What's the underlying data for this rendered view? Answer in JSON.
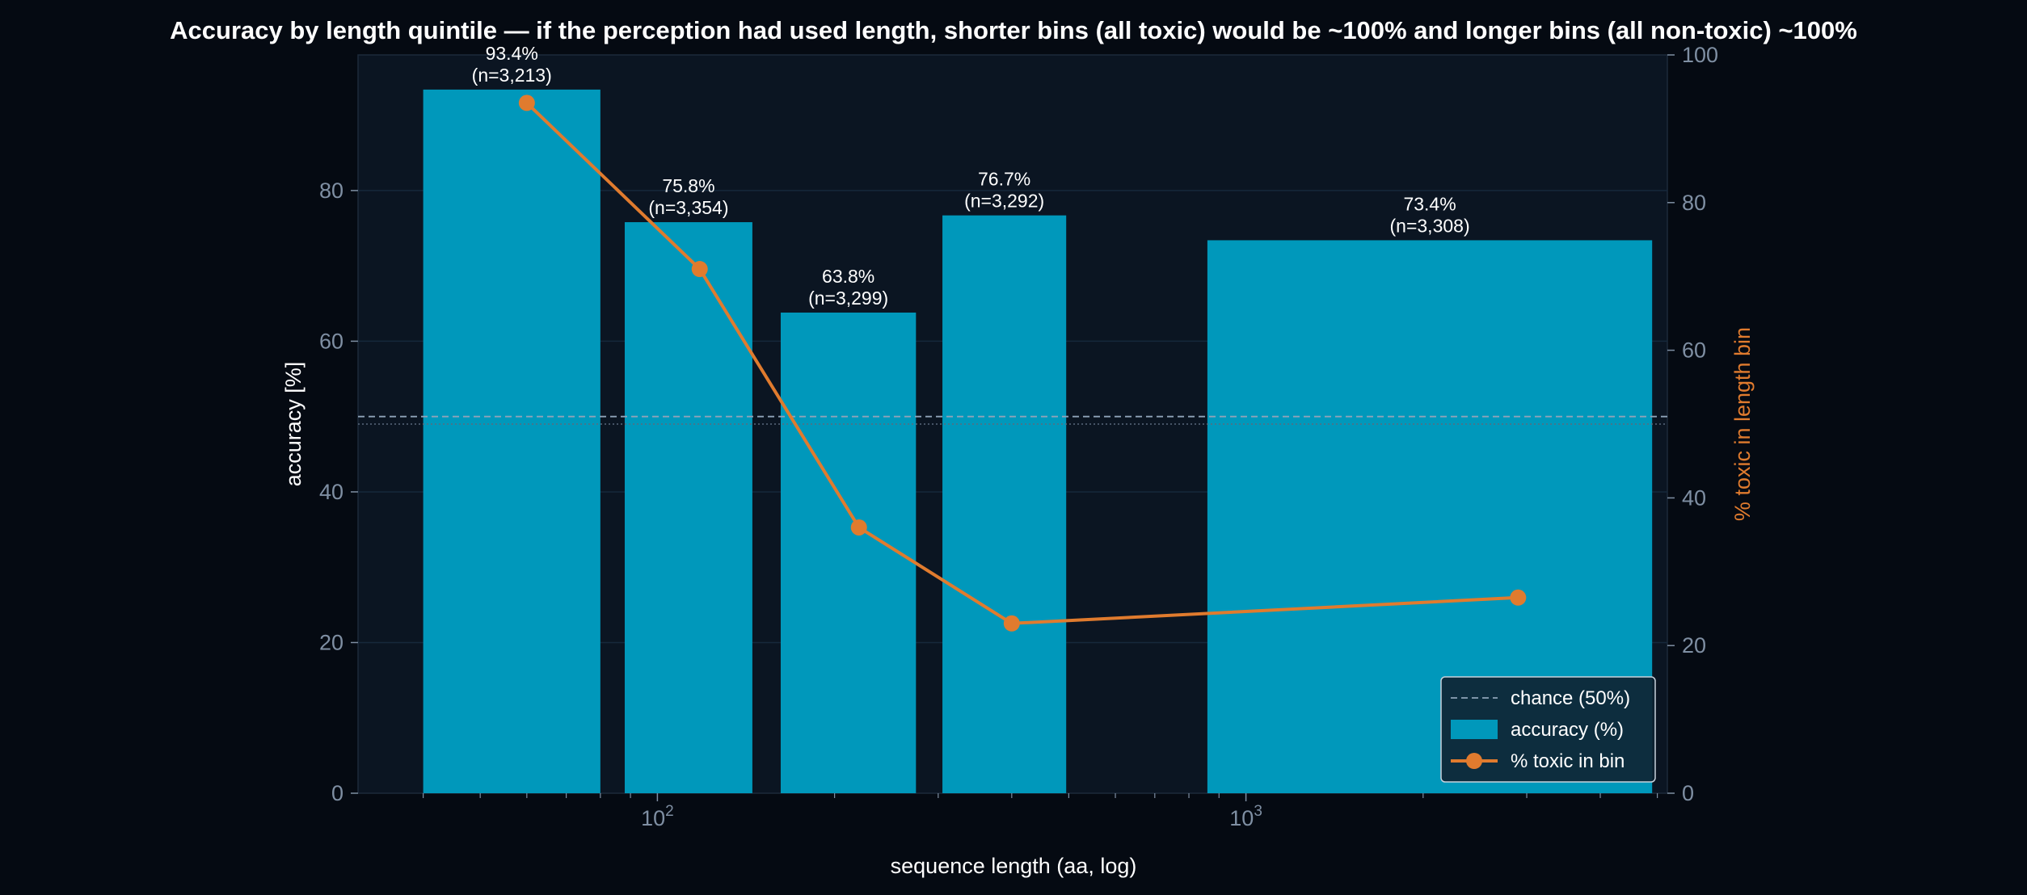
{
  "chart_data": {
    "type": "bar",
    "title": "Accuracy by length quintile — if the perception had used length, shorter bins (all toxic) would be ~100% and longer bins (all non-toxic) ~100%",
    "xlabel": "sequence length (aa, log)",
    "ylabel": "accuracy  [%]",
    "y2label": "% toxic in length bin",
    "x_scale": "log",
    "xlim": [
      31,
      5200
    ],
    "ylim": [
      0,
      98
    ],
    "y2lim": [
      0,
      100
    ],
    "x_ticks": [
      {
        "value": 100,
        "base": "10",
        "exp": "2"
      },
      {
        "value": 1000,
        "base": "10",
        "exp": "3"
      }
    ],
    "y_ticks": [
      0,
      20,
      40,
      60,
      80
    ],
    "y2_ticks": [
      0,
      20,
      40,
      60,
      80,
      100
    ],
    "grid": true,
    "legend_position": "bottom-right",
    "colors": {
      "bar": "#0098bb",
      "line": "#e07b2e",
      "chance": "#8fa3b8",
      "background": "#0b1522",
      "page": "#050a12"
    },
    "bins": [
      {
        "x_start": 40,
        "x_end": 80,
        "center": 60,
        "accuracy": 93.4,
        "acc_label": "93.4%",
        "n_label": "(n=3,213)",
        "toxic_pct": 93.5
      },
      {
        "x_start": 88,
        "x_end": 145,
        "center": 118,
        "accuracy": 75.8,
        "acc_label": "75.8%",
        "n_label": "(n=3,354)",
        "toxic_pct": 71.0
      },
      {
        "x_start": 162,
        "x_end": 275,
        "center": 220,
        "accuracy": 63.8,
        "acc_label": "63.8%",
        "n_label": "(n=3,299)",
        "toxic_pct": 36.0
      },
      {
        "x_start": 305,
        "x_end": 495,
        "center": 400,
        "accuracy": 76.7,
        "acc_label": "76.7%",
        "n_label": "(n=3,292)",
        "toxic_pct": 23.0
      },
      {
        "x_start": 860,
        "x_end": 4900,
        "center": 2900,
        "accuracy": 73.4,
        "acc_label": "73.4%",
        "n_label": "(n=3,308)",
        "toxic_pct": 26.5
      }
    ],
    "chance_level": 50,
    "legend": [
      {
        "key": "chance",
        "label": "chance (50%)"
      },
      {
        "key": "accuracy",
        "label": "accuracy (%)"
      },
      {
        "key": "toxic",
        "label": "% toxic in bin"
      }
    ]
  }
}
